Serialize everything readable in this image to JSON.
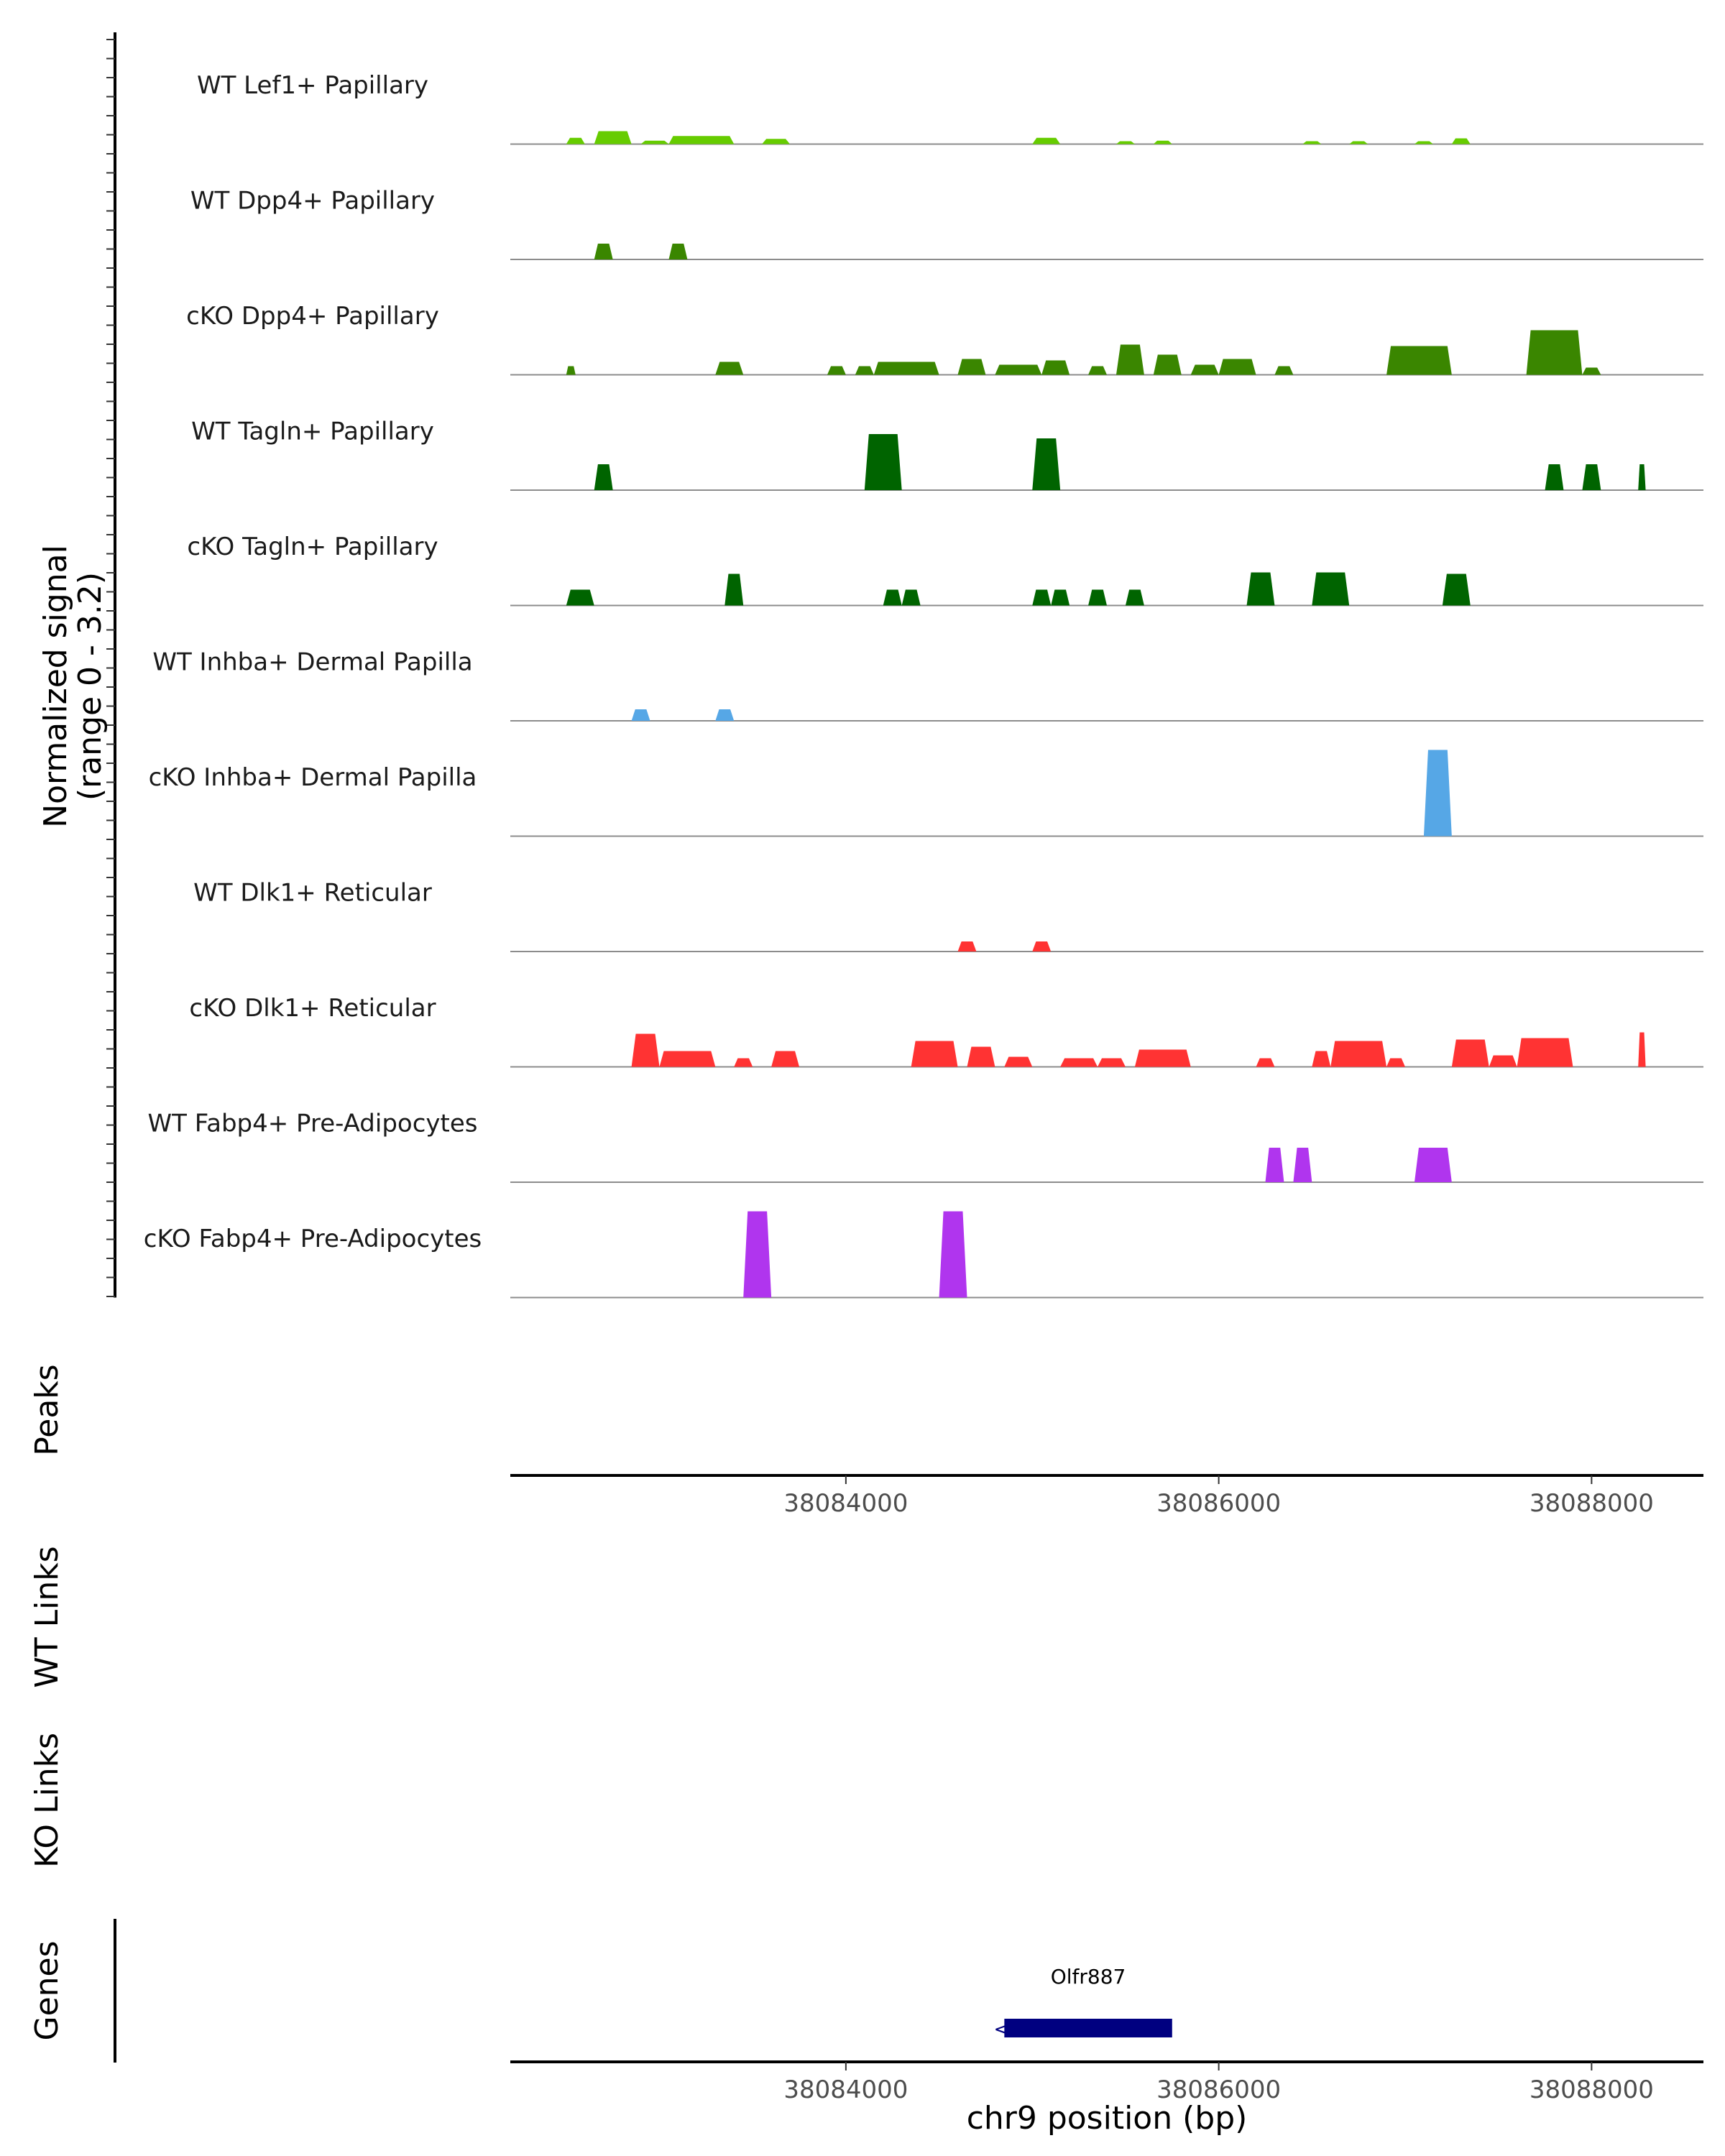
{
  "chart_data": {
    "type": "area",
    "title": "",
    "xlabel": "chr9 position (bp)",
    "ylabel": "Normalized signal\n(range 0 - 3.2)",
    "chromosome": "chr9",
    "xlim": [
      38082200,
      38088600
    ],
    "ylim": [
      0,
      3.2
    ],
    "x_ticks": [
      38084000,
      38086000,
      38088000
    ],
    "x_tick_labels": [
      "38084000",
      "38086000",
      "38088000"
    ],
    "section_labels": {
      "peaks": "Peaks",
      "wt_links": "WT Links",
      "ko_links": "KO Links",
      "genes": "Genes"
    },
    "tracks": [
      {
        "name": "WT Lef1+ Papillary",
        "color": "#66CC00",
        "bins": [
          [
            38082500,
            38082600,
            0.22
          ],
          [
            38082650,
            38082850,
            0.45
          ],
          [
            38082900,
            38083050,
            0.12
          ],
          [
            38083050,
            38083400,
            0.28
          ],
          [
            38083550,
            38083700,
            0.18
          ],
          [
            38085000,
            38085150,
            0.22
          ],
          [
            38085450,
            38085550,
            0.1
          ],
          [
            38085650,
            38085750,
            0.12
          ],
          [
            38086450,
            38086550,
            0.1
          ],
          [
            38086700,
            38086800,
            0.1
          ],
          [
            38087050,
            38087150,
            0.1
          ],
          [
            38087250,
            38087350,
            0.2
          ]
        ]
      },
      {
        "name": "WT Dpp4+ Papillary",
        "color": "#3A8600",
        "bins": [
          [
            38082650,
            38082750,
            0.55
          ],
          [
            38083050,
            38083150,
            0.55
          ]
        ]
      },
      {
        "name": "cKO Dpp4+ Papillary",
        "color": "#3A8600",
        "bins": [
          [
            38082500,
            38082550,
            0.3
          ],
          [
            38083300,
            38083450,
            0.45
          ],
          [
            38083900,
            38084000,
            0.3
          ],
          [
            38084050,
            38084150,
            0.3
          ],
          [
            38084150,
            38084500,
            0.45
          ],
          [
            38084600,
            38084750,
            0.55
          ],
          [
            38084800,
            38085050,
            0.35
          ],
          [
            38085050,
            38085200,
            0.5
          ],
          [
            38085300,
            38085400,
            0.3
          ],
          [
            38085450,
            38085600,
            1.05
          ],
          [
            38085650,
            38085800,
            0.7
          ],
          [
            38085850,
            38086000,
            0.35
          ],
          [
            38086000,
            38086200,
            0.55
          ],
          [
            38086300,
            38086400,
            0.3
          ],
          [
            38086900,
            38087250,
            1.0
          ],
          [
            38087650,
            38087950,
            1.55
          ],
          [
            38087950,
            38088050,
            0.25
          ]
        ]
      },
      {
        "name": "WT Tagln+ Papillary",
        "color": "#006400",
        "bins": [
          [
            38082650,
            38082750,
            0.9
          ],
          [
            38084100,
            38084300,
            1.95
          ],
          [
            38085000,
            38085150,
            1.8
          ],
          [
            38087750,
            38087850,
            0.9
          ],
          [
            38087950,
            38088050,
            0.9
          ],
          [
            38088250,
            38088290,
            0.9
          ]
        ]
      },
      {
        "name": "cKO Tagln+ Papillary",
        "color": "#006400",
        "bins": [
          [
            38082500,
            38082650,
            0.55
          ],
          [
            38083350,
            38083450,
            1.1
          ],
          [
            38084200,
            38084300,
            0.55
          ],
          [
            38084300,
            38084400,
            0.55
          ],
          [
            38085000,
            38085100,
            0.55
          ],
          [
            38085100,
            38085200,
            0.55
          ],
          [
            38085300,
            38085400,
            0.55
          ],
          [
            38085500,
            38085600,
            0.55
          ],
          [
            38086150,
            38086300,
            1.15
          ],
          [
            38086500,
            38086700,
            1.15
          ],
          [
            38087200,
            38087350,
            1.1
          ]
        ]
      },
      {
        "name": "WT Inhba+ Dermal Papilla",
        "color": "#56A7E6",
        "bins": [
          [
            38082850,
            38082950,
            0.4
          ],
          [
            38083300,
            38083400,
            0.4
          ]
        ]
      },
      {
        "name": "cKO Inhba+ Dermal Papilla",
        "color": "#56A7E6",
        "bins": [
          [
            38087100,
            38087250,
            3.0
          ]
        ]
      },
      {
        "name": "WT Dlk1+ Reticular",
        "color": "#FF3333",
        "bins": [
          [
            38084600,
            38084700,
            0.35
          ],
          [
            38085000,
            38085100,
            0.35
          ]
        ]
      },
      {
        "name": "cKO Dlk1+ Reticular",
        "color": "#FF3333",
        "bins": [
          [
            38082850,
            38083000,
            1.15
          ],
          [
            38083000,
            38083300,
            0.55
          ],
          [
            38083400,
            38083500,
            0.3
          ],
          [
            38083600,
            38083750,
            0.55
          ],
          [
            38084350,
            38084600,
            0.9
          ],
          [
            38084650,
            38084800,
            0.7
          ],
          [
            38084850,
            38085000,
            0.35
          ],
          [
            38085150,
            38085350,
            0.3
          ],
          [
            38085350,
            38085500,
            0.3
          ],
          [
            38085550,
            38085850,
            0.6
          ],
          [
            38086200,
            38086300,
            0.3
          ],
          [
            38086500,
            38086600,
            0.55
          ],
          [
            38086600,
            38086900,
            0.9
          ],
          [
            38086900,
            38087000,
            0.3
          ],
          [
            38087250,
            38087450,
            0.95
          ],
          [
            38087450,
            38087600,
            0.4
          ],
          [
            38087600,
            38087900,
            1.0
          ],
          [
            38088250,
            38088290,
            1.2
          ]
        ]
      },
      {
        "name": "WT Fabp4+ Pre-Adipocytes",
        "color": "#B035EE",
        "bins": [
          [
            38086250,
            38086350,
            1.2
          ],
          [
            38086400,
            38086500,
            1.2
          ],
          [
            38087050,
            38087250,
            1.2
          ]
        ]
      },
      {
        "name": "cKO Fabp4+ Pre-Adipocytes",
        "color": "#B035EE",
        "bins": [
          [
            38083450,
            38083600,
            3.0
          ],
          [
            38084500,
            38084650,
            3.0
          ]
        ]
      }
    ],
    "genes": [
      {
        "name": "Olfr887",
        "start": 38084850,
        "end": 38085750,
        "strand": "-",
        "color": "#000080"
      }
    ]
  }
}
